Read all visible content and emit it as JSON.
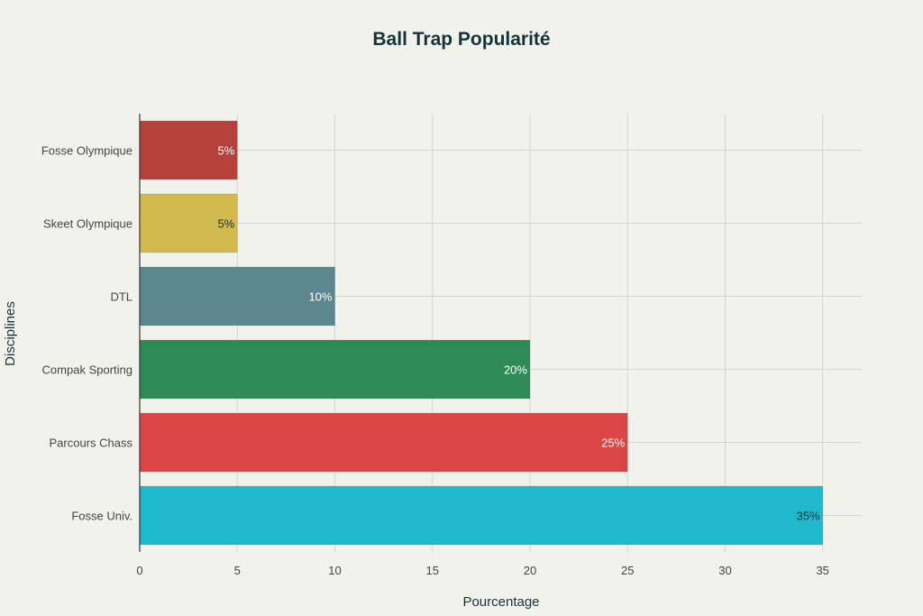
{
  "chart_data": {
    "type": "bar",
    "orientation": "horizontal",
    "title": "Ball Trap Popularité",
    "xlabel": "Pourcentage",
    "ylabel": "Disciplines",
    "categories": [
      "Fosse Univ.",
      "Parcours Chass",
      "Compak Sporting",
      "DTL",
      "Skeet Olympique",
      "Fosse Olympique"
    ],
    "values": [
      35,
      25,
      20,
      10,
      5,
      5
    ],
    "data_labels": [
      "35%",
      "25%",
      "20%",
      "10%",
      "5%",
      "5%"
    ],
    "bar_colors": [
      "#1fb8cd",
      "#db4545",
      "#2e8b57",
      "#5d878f",
      "#d2ba4c",
      "#b4413c"
    ],
    "label_colors": [
      "#13343b",
      "#ffffff",
      "#ffffff",
      "#ffffff",
      "#13343b",
      "#ffffff"
    ],
    "xlim": [
      0,
      37
    ],
    "xticks": [
      0,
      5,
      10,
      15,
      20,
      25,
      30,
      35
    ],
    "grid": true,
    "legend": "none"
  }
}
